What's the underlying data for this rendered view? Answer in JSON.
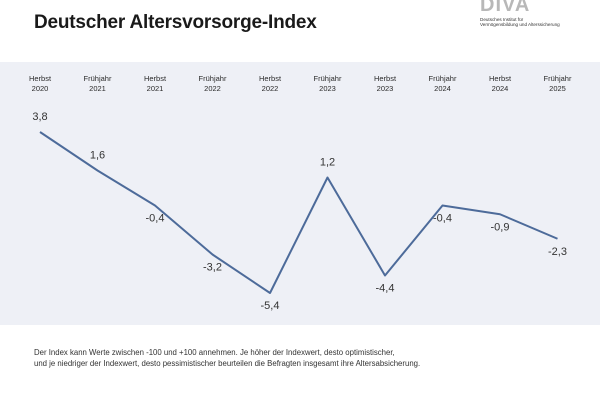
{
  "header": {
    "title": "Deutscher Altersvorsorge-Index"
  },
  "logo": {
    "mark": "DIVA",
    "line1": "Deutsches Institut für",
    "line2": "Vermögensbildung und Alterssicherung"
  },
  "chart_data": {
    "type": "line",
    "title": "",
    "xlabel": "",
    "ylabel": "",
    "categories": [
      [
        "Herbst",
        "2020"
      ],
      [
        "Frühjahr",
        "2021"
      ],
      [
        "Herbst",
        "2021"
      ],
      [
        "Frühjahr",
        "2022"
      ],
      [
        "Herbst",
        "2022"
      ],
      [
        "Frühjahr",
        "2023"
      ],
      [
        "Herbst",
        "2023"
      ],
      [
        "Frühjahr",
        "2024"
      ],
      [
        "Herbst",
        "2024"
      ],
      [
        "Frühjahr",
        "2025"
      ]
    ],
    "values": [
      3.8,
      1.6,
      -0.4,
      -3.2,
      -5.4,
      1.2,
      -4.4,
      -0.4,
      -0.9,
      -2.3
    ],
    "value_labels": [
      "3,8",
      "1,6",
      "-0,4",
      "-3,2",
      "-5,4",
      "1,2",
      "-4,4",
      "-0,4",
      "-0,9",
      "-2,3"
    ],
    "ylim": [
      -6,
      5
    ],
    "grid": false,
    "line_color": "#4d6b9a"
  },
  "footnote": {
    "line1": "Der Index kann Werte zwischen -100 und +100 annehmen. Je höher der Indexwert, desto optimistischer,",
    "line2": "und je niedriger der Indexwert, desto pessimistischer beurteilen die Befragten insgesamt ihre Altersabsicherung."
  }
}
